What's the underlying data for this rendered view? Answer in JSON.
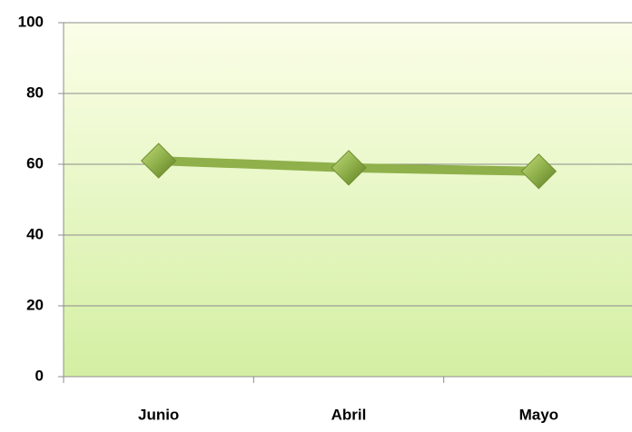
{
  "chart_data": {
    "type": "line",
    "categories": [
      "Junio",
      "Abril",
      "Mayo"
    ],
    "series": [
      {
        "color": "#8fb04a",
        "values": [
          61,
          59,
          58
        ]
      }
    ],
    "ylim": [
      0,
      100
    ],
    "yticks": [
      0,
      20,
      40,
      60,
      80,
      100
    ],
    "grid": true
  }
}
